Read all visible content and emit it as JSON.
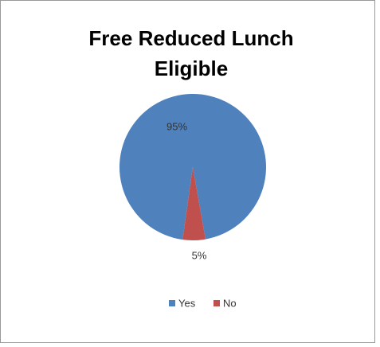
{
  "chart_data": {
    "type": "pie",
    "title": [
      "Free Reduced Lunch",
      "Eligible"
    ],
    "categories": [
      "Yes",
      "No"
    ],
    "values": [
      95,
      5
    ],
    "value_labels": [
      "95%",
      "5%"
    ],
    "colors": [
      "#4f81bd",
      "#c0504d"
    ],
    "legend": "bottom"
  }
}
